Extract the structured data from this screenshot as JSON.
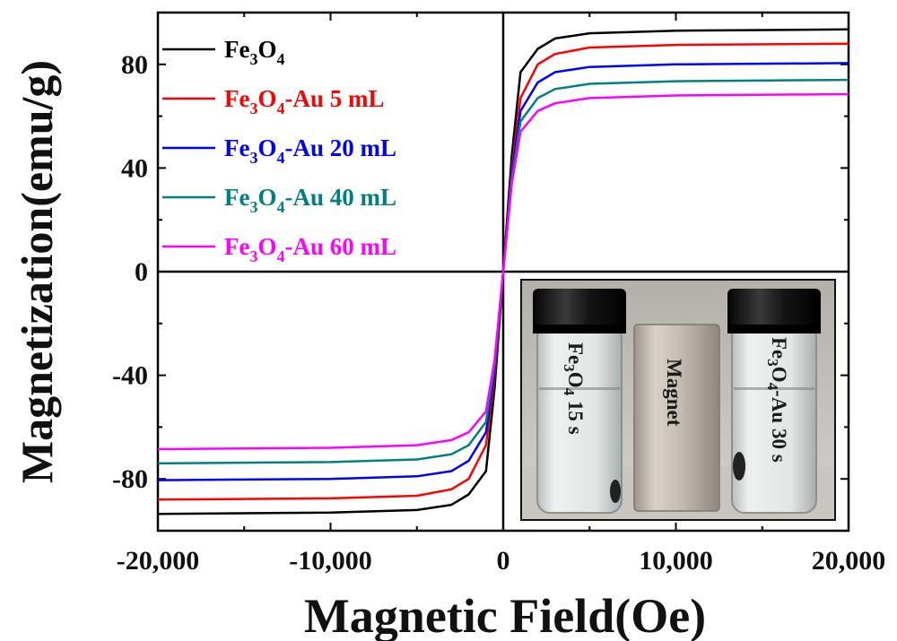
{
  "chart_data": {
    "type": "line",
    "xlabel": "Magnetic Field(Oe)",
    "ylabel": "Magnetization(emu/g)",
    "xlim": [
      -20000,
      20000
    ],
    "ylim": [
      -100,
      100
    ],
    "xticks": [
      -20000,
      -10000,
      0,
      10000,
      20000
    ],
    "xtick_labels": [
      "-20,000",
      "-10,000",
      "0",
      "10,000",
      "20,000"
    ],
    "yticks": [
      -80,
      -40,
      0,
      40,
      80
    ],
    "ytick_labels": [
      "-80",
      "-40",
      "0",
      "40",
      "80"
    ],
    "grid": false,
    "legend_position": "top-left",
    "series": [
      {
        "name": "Fe3O4",
        "legend": {
          "base": "Fe",
          "sub1": "3",
          "mid": "O",
          "sub2": "4",
          "rest": ""
        },
        "color": "#000000",
        "points": [
          [
            -20000,
            -93.5
          ],
          [
            -10000,
            -93
          ],
          [
            -5000,
            -92
          ],
          [
            -3000,
            -90
          ],
          [
            -2000,
            -86
          ],
          [
            -1000,
            -77
          ],
          [
            -500,
            -45
          ],
          [
            0,
            0
          ],
          [
            500,
            45
          ],
          [
            1000,
            77
          ],
          [
            2000,
            86
          ],
          [
            3000,
            90
          ],
          [
            5000,
            92
          ],
          [
            10000,
            93
          ],
          [
            20000,
            93.5
          ]
        ]
      },
      {
        "name": "Fe3O4-Au 5 mL",
        "legend": {
          "base": "Fe",
          "sub1": "3",
          "mid": "O",
          "sub2": "4",
          "rest": "-Au 5 mL"
        },
        "color": "#ff0000",
        "points": [
          [
            -20000,
            -88
          ],
          [
            -10000,
            -87.5
          ],
          [
            -5000,
            -86.5
          ],
          [
            -3000,
            -84
          ],
          [
            -2000,
            -80
          ],
          [
            -1000,
            -67
          ],
          [
            -500,
            -40
          ],
          [
            0,
            0
          ],
          [
            500,
            40
          ],
          [
            1000,
            67
          ],
          [
            2000,
            80
          ],
          [
            3000,
            84
          ],
          [
            5000,
            86.5
          ],
          [
            10000,
            87.5
          ],
          [
            20000,
            88
          ]
        ]
      },
      {
        "name": "Fe3O4-Au 20 mL",
        "legend": {
          "base": "Fe",
          "sub1": "3",
          "mid": "O",
          "sub2": "4",
          "rest": "-Au 20 mL"
        },
        "color": "#0000ff",
        "points": [
          [
            -20000,
            -80.5
          ],
          [
            -10000,
            -80
          ],
          [
            -5000,
            -79
          ],
          [
            -3000,
            -77
          ],
          [
            -2000,
            -73
          ],
          [
            -1000,
            -62
          ],
          [
            -500,
            -38
          ],
          [
            0,
            0
          ],
          [
            500,
            38
          ],
          [
            1000,
            62
          ],
          [
            2000,
            73
          ],
          [
            3000,
            77
          ],
          [
            5000,
            79
          ],
          [
            10000,
            80
          ],
          [
            20000,
            80.5
          ]
        ]
      },
      {
        "name": "Fe3O4-Au 40 mL",
        "legend": {
          "base": "Fe",
          "sub1": "3",
          "mid": "O",
          "sub2": "4",
          "rest": "-Au 40 mL"
        },
        "color": "#008080",
        "points": [
          [
            -20000,
            -74
          ],
          [
            -10000,
            -73.5
          ],
          [
            -5000,
            -72.5
          ],
          [
            -3000,
            -70.5
          ],
          [
            -2000,
            -67
          ],
          [
            -1000,
            -58
          ],
          [
            -500,
            -36
          ],
          [
            0,
            0
          ],
          [
            500,
            36
          ],
          [
            1000,
            58
          ],
          [
            2000,
            67
          ],
          [
            3000,
            70.5
          ],
          [
            5000,
            72.5
          ],
          [
            10000,
            73.5
          ],
          [
            20000,
            74
          ]
        ]
      },
      {
        "name": "Fe3O4-Au 60 mL",
        "legend": {
          "base": "Fe",
          "sub1": "3",
          "mid": "O",
          "sub2": "4",
          "rest": "-Au 60 mL"
        },
        "color": "#ff00ff",
        "points": [
          [
            -20000,
            -68.5
          ],
          [
            -10000,
            -68
          ],
          [
            -5000,
            -67
          ],
          [
            -3000,
            -65
          ],
          [
            -2000,
            -62
          ],
          [
            -1000,
            -54
          ],
          [
            -500,
            -34
          ],
          [
            0,
            0
          ],
          [
            500,
            34
          ],
          [
            1000,
            54
          ],
          [
            2000,
            62
          ],
          [
            3000,
            65
          ],
          [
            5000,
            67
          ],
          [
            10000,
            68
          ],
          [
            20000,
            68.5
          ]
        ]
      }
    ]
  },
  "inset_photo": {
    "left_vial_label": {
      "base": "Fe",
      "sub1": "3",
      "mid": "O",
      "sub2": "4",
      "rest": " 15 s"
    },
    "magnet_label": "Magnet",
    "right_vial_label": {
      "base": "Fe",
      "sub1": "3",
      "mid": "O",
      "sub2": "4",
      "rest": "-Au 30 s"
    }
  }
}
